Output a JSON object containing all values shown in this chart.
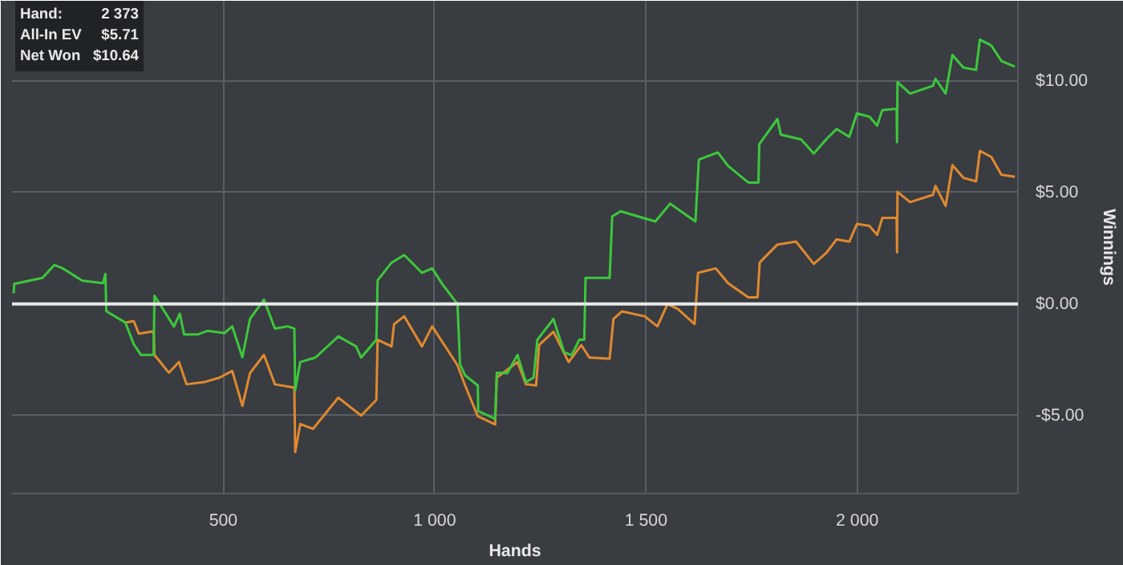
{
  "chart_data": {
    "type": "line",
    "xlabel": "Hands",
    "ylabel": "Winnings",
    "annotations": [
      "Hand:",
      "2 373",
      "All-In EV",
      "$5.71",
      "Net Won",
      "$10.64"
    ],
    "xlim": [
      0,
      2380
    ],
    "ylim": [
      -8.5,
      13.6
    ],
    "xticks": [
      500,
      {
        "value": 1000,
        "label": "1 000"
      },
      {
        "value": 1500,
        "label": "1 500"
      },
      {
        "value": 2000,
        "label": "2 000"
      }
    ],
    "yticks": [
      {
        "value": -5,
        "label": "-$5.00"
      },
      {
        "value": 0,
        "label": "$0.00"
      },
      {
        "value": 5,
        "label": "$5.00"
      },
      {
        "value": 10,
        "label": "$10.00"
      }
    ],
    "grid": true,
    "ref_lines": [
      {
        "axis": "y",
        "value": 0,
        "color": "#e8e8e8"
      }
    ],
    "series": [
      {
        "color": "#3cc83c",
        "x": [
          4,
          5,
          72,
          100,
          120,
          166,
          215,
          221,
          223,
          268,
          288,
          305,
          335,
          337,
          352,
          383,
          397,
          407,
          440,
          463,
          503,
          521,
          545,
          563,
          596,
          622,
          652,
          668,
          670,
          682,
          718,
          772,
          814,
          826,
          862,
          865,
          898,
          928,
          970,
          994,
          1018,
          1054,
          1060,
          1072,
          1102,
          1103,
          1143,
          1147,
          1172,
          1196,
          1216,
          1234,
          1243,
          1281,
          1306,
          1324,
          1342,
          1354,
          1357,
          1414,
          1420,
          1440,
          1522,
          1557,
          1617,
          1625,
          1670,
          1694,
          1742,
          1766,
          1768,
          1811,
          1819,
          1867,
          1897,
          1927,
          1951,
          1981,
          1999,
          2029,
          2047,
          2059,
          2093,
          2094,
          2095,
          2125,
          2179,
          2185,
          2209,
          2225,
          2251,
          2281,
          2290,
          2317,
          2341,
          2373
        ],
        "values": [
          0.48,
          0.9,
          1.17,
          1.75,
          1.6,
          1.05,
          0.94,
          1.35,
          -0.32,
          -0.83,
          -1.8,
          -2.28,
          -2.28,
          0.37,
          -0.07,
          -1.01,
          -0.43,
          -1.36,
          -1.36,
          -1.2,
          -1.3,
          -1.0,
          -2.39,
          -0.67,
          0.2,
          -1.1,
          -1.0,
          -1.1,
          -3.86,
          -2.6,
          -2.4,
          -1.45,
          -1.9,
          -2.4,
          -1.6,
          1.06,
          1.86,
          2.2,
          1.4,
          1.6,
          0.9,
          0.0,
          -2.7,
          -3.2,
          -3.65,
          -4.8,
          -5.15,
          -3.08,
          -3.1,
          -2.28,
          -3.5,
          -3.3,
          -1.6,
          -0.67,
          -2.15,
          -2.3,
          -1.6,
          -1.6,
          1.17,
          1.17,
          3.93,
          4.16,
          3.7,
          4.5,
          3.7,
          6.48,
          6.8,
          6.2,
          5.45,
          5.45,
          7.17,
          8.3,
          7.6,
          7.38,
          6.75,
          7.4,
          7.85,
          7.5,
          8.55,
          8.4,
          8.0,
          8.7,
          8.76,
          7.26,
          9.95,
          9.44,
          9.79,
          10.1,
          9.44,
          11.17,
          10.6,
          10.5,
          11.86,
          11.6,
          10.9,
          10.64
        ]
      },
      {
        "color": "#e0892f",
        "x": [
          268,
          288,
          300,
          335,
          337,
          371,
          395,
          413,
          455,
          491,
          521,
          545,
          563,
          596,
          622,
          668,
          670,
          682,
          712,
          772,
          826,
          862,
          865,
          898,
          904,
          928,
          970,
          994,
          1054,
          1072,
          1102,
          1143,
          1147,
          1196,
          1216,
          1240,
          1247,
          1281,
          1317,
          1347,
          1366,
          1414,
          1423,
          1443,
          1497,
          1527,
          1551,
          1575,
          1615,
          1623,
          1665,
          1694,
          1742,
          1764,
          1769,
          1811,
          1855,
          1897,
          1927,
          1951,
          1981,
          1999,
          2029,
          2047,
          2059,
          2093,
          2094,
          2095,
          2125,
          2179,
          2185,
          2209,
          2225,
          2251,
          2281,
          2290,
          2317,
          2341,
          2373
        ],
        "values": [
          -0.83,
          -0.76,
          -1.33,
          -1.22,
          -2.28,
          -3.08,
          -2.6,
          -3.6,
          -3.5,
          -3.3,
          -3.0,
          -4.57,
          -3.1,
          -2.28,
          -3.6,
          -3.75,
          -6.64,
          -5.38,
          -5.6,
          -4.2,
          -5.0,
          -4.3,
          -1.6,
          -1.9,
          -0.9,
          -0.55,
          -1.9,
          -1.0,
          -2.74,
          -3.65,
          -5.03,
          -5.4,
          -3.3,
          -2.6,
          -3.6,
          -3.65,
          -1.84,
          -1.24,
          -2.6,
          -1.84,
          -2.4,
          -2.45,
          -0.67,
          -0.33,
          -0.55,
          -1.0,
          0.0,
          -0.22,
          -0.9,
          1.4,
          1.6,
          0.94,
          0.3,
          0.3,
          1.86,
          2.67,
          2.8,
          1.8,
          2.3,
          2.9,
          2.8,
          3.59,
          3.5,
          3.1,
          3.86,
          3.86,
          2.32,
          5.03,
          4.57,
          4.9,
          5.3,
          4.4,
          6.23,
          5.66,
          5.5,
          6.87,
          6.6,
          5.8,
          5.71
        ]
      }
    ]
  }
}
